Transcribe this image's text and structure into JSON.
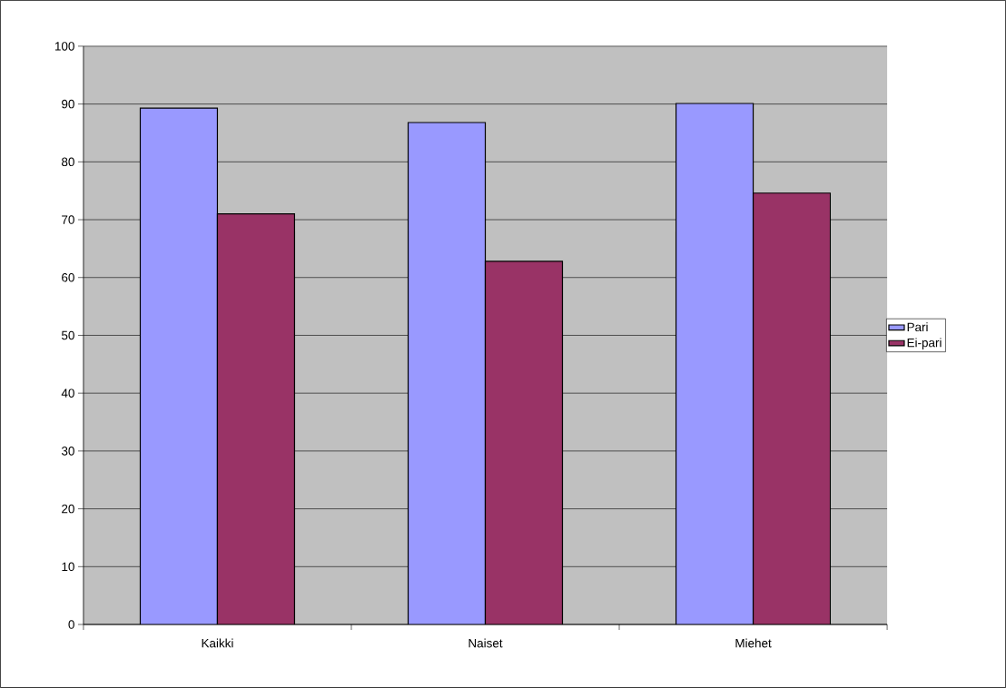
{
  "chart_data": {
    "type": "bar",
    "categories": [
      "Kaikki",
      "Naiset",
      "Miehet"
    ],
    "series": [
      {
        "name": "Pari",
        "color": "#9999ff",
        "values": [
          89.3,
          86.8,
          90.1
        ]
      },
      {
        "name": "Ei-pari",
        "color": "#993366",
        "values": [
          71.0,
          62.8,
          74.6
        ]
      }
    ],
    "ylim": [
      0,
      100
    ],
    "yticks": [
      0,
      10,
      20,
      30,
      40,
      50,
      60,
      70,
      80,
      90,
      100
    ],
    "grid": "y",
    "legend": "right"
  }
}
